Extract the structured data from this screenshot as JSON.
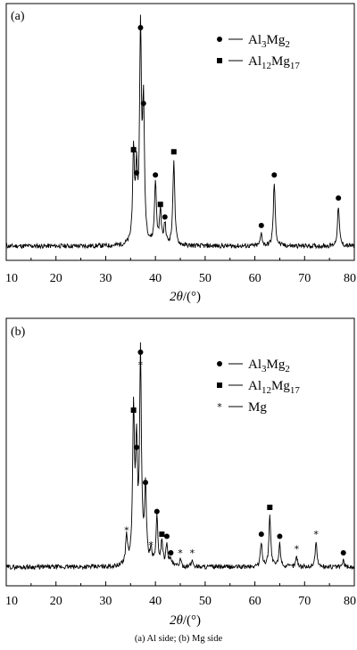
{
  "caption": "(a) Al side; (b) Mg side",
  "colors": {
    "line": "#000000",
    "background": "#ffffff"
  },
  "chart_data": [
    {
      "type": "line",
      "panel_label": "(a)",
      "xlabel": "2θ/(°)",
      "xlim": [
        10,
        80
      ],
      "x_ticks": [
        "10",
        "20",
        "30",
        "40",
        "50",
        "60",
        "70",
        "80"
      ],
      "y_ticks_shown": false,
      "legend_position": "top-right",
      "legend": [
        {
          "marker": "circle",
          "base": "Al",
          "sub1": "3",
          "mid": "Mg",
          "sub2": "2"
        },
        {
          "marker": "square",
          "base": "Al",
          "sub1": "12",
          "mid": "Mg",
          "sub2": "17"
        }
      ],
      "peaks": [
        {
          "x": 35.6,
          "h": 0.42,
          "marker": "square"
        },
        {
          "x": 36.2,
          "h": 0.31,
          "marker": "circle"
        },
        {
          "x": 37.0,
          "h": 1.0,
          "marker": "circle"
        },
        {
          "x": 37.6,
          "h": 0.64,
          "marker": "circle"
        },
        {
          "x": 40.0,
          "h": 0.3,
          "marker": "circle"
        },
        {
          "x": 41.0,
          "h": 0.16,
          "marker": "square"
        },
        {
          "x": 41.9,
          "h": 0.1,
          "marker": "circle"
        },
        {
          "x": 43.7,
          "h": 0.41,
          "marker": "square"
        },
        {
          "x": 61.3,
          "h": 0.06,
          "marker": "circle"
        },
        {
          "x": 63.9,
          "h": 0.3,
          "marker": "circle"
        },
        {
          "x": 76.8,
          "h": 0.19,
          "marker": "circle"
        }
      ]
    },
    {
      "type": "line",
      "panel_label": "(b)",
      "xlabel": "2θ/(°)",
      "xlim": [
        10,
        80
      ],
      "x_ticks": [
        "10",
        "20",
        "30",
        "40",
        "50",
        "60",
        "70",
        "80"
      ],
      "y_ticks_shown": false,
      "legend_position": "top-right",
      "legend": [
        {
          "marker": "circle",
          "base": "Al",
          "sub1": "3",
          "mid": "Mg",
          "sub2": "2"
        },
        {
          "marker": "square",
          "base": "Al",
          "sub1": "12",
          "mid": "Mg",
          "sub2": "17"
        },
        {
          "marker": "star",
          "text": "Mg"
        }
      ],
      "peaks": [
        {
          "x": 34.2,
          "h": 0.14,
          "marker": "star"
        },
        {
          "x": 35.6,
          "h": 0.72,
          "marker": "square"
        },
        {
          "x": 36.2,
          "h": 0.54,
          "marker": "circle"
        },
        {
          "x": 37.0,
          "h": 1.0,
          "marker": "circle",
          "marker2": "star"
        },
        {
          "x": 38.0,
          "h": 0.37,
          "marker": "circle"
        },
        {
          "x": 39.1,
          "h": 0.07,
          "marker": "star"
        },
        {
          "x": 40.3,
          "h": 0.23,
          "marker": "circle"
        },
        {
          "x": 41.3,
          "h": 0.12,
          "marker": "square"
        },
        {
          "x": 42.3,
          "h": 0.11,
          "marker": "circle"
        },
        {
          "x": 43.1,
          "h": 0.03,
          "marker": "circle"
        },
        {
          "x": 45.0,
          "h": 0.03,
          "marker": "star"
        },
        {
          "x": 47.4,
          "h": 0.03,
          "marker": "star"
        },
        {
          "x": 61.3,
          "h": 0.12,
          "marker": "circle"
        },
        {
          "x": 63.0,
          "h": 0.25,
          "marker": "square"
        },
        {
          "x": 65.0,
          "h": 0.11,
          "marker": "circle"
        },
        {
          "x": 68.4,
          "h": 0.05,
          "marker": "star"
        },
        {
          "x": 72.3,
          "h": 0.12,
          "marker": "star"
        },
        {
          "x": 77.8,
          "h": 0.03,
          "marker": "circle"
        }
      ]
    }
  ]
}
